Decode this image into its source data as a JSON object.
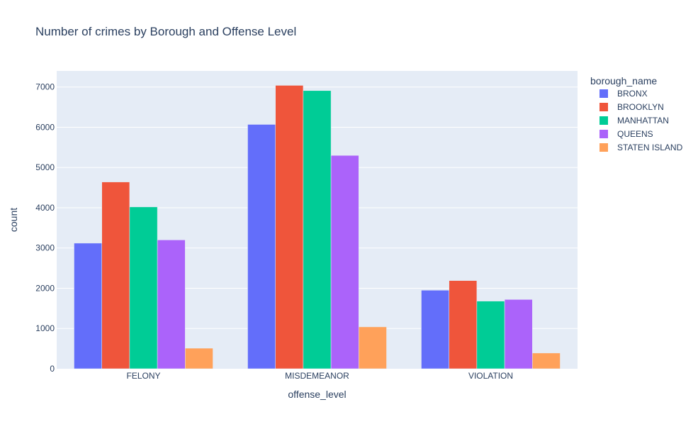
{
  "chart_data": {
    "type": "bar",
    "title": "Number of crimes by Borough and Offense Level",
    "xlabel": "offense_level",
    "ylabel": "count",
    "categories": [
      "FELONY",
      "MISDEMEANOR",
      "VIOLATION"
    ],
    "ylim": [
      0,
      7400
    ],
    "yticks": [
      0,
      1000,
      2000,
      3000,
      4000,
      5000,
      6000,
      7000
    ],
    "legend_title": "borough_name",
    "legend_position": "right",
    "grid": true,
    "plot_background": "#E5ECF6",
    "series": [
      {
        "name": "BRONX",
        "color": "#636EFA",
        "values": [
          3120,
          6070,
          1950
        ]
      },
      {
        "name": "BROOKLYN",
        "color": "#EF553B",
        "values": [
          4640,
          7040,
          2190
        ]
      },
      {
        "name": "MANHATTAN",
        "color": "#00CC96",
        "values": [
          4020,
          6910,
          1680
        ]
      },
      {
        "name": "QUEENS",
        "color": "#AB63FA",
        "values": [
          3200,
          5300,
          1720
        ]
      },
      {
        "name": "STATEN ISLAND",
        "color": "#FFA15A",
        "values": [
          510,
          1040,
          390
        ]
      }
    ]
  }
}
